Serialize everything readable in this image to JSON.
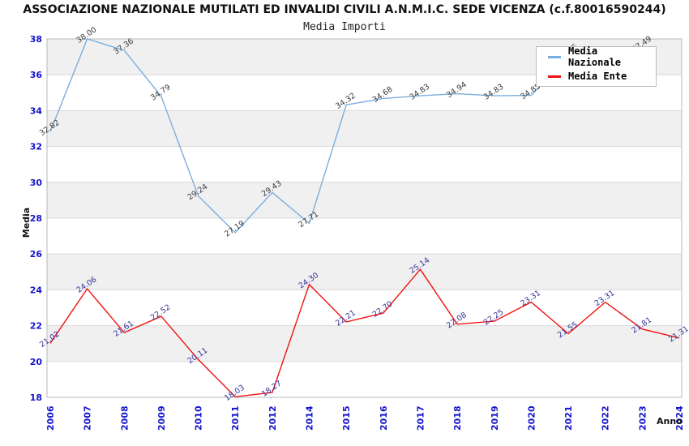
{
  "page": {
    "title": "ASSOCIAZIONE NAZIONALE MUTILATI ED INVALIDI CIVILI A.N.M.I.C. SEDE VICENZA (c.f.80016590244)",
    "subtitle": "Media Importi"
  },
  "axes": {
    "y_title": "Media",
    "x_title": "Anno"
  },
  "legend": {
    "items": [
      {
        "label": "Media Nazionale",
        "color": "#7aaede"
      },
      {
        "label": "Media Ente",
        "color": "#ee1111"
      }
    ]
  },
  "colors": {
    "axis_tick_text": "#1414cc",
    "band_gray": "#f0f0f0",
    "band_white": "#ffffff",
    "gridline": "#d9d9d9",
    "plot_border": "#b8b8b8",
    "nazionale_line": "#7aaede",
    "ente_line": "#ee1111",
    "nazionale_label_text": "#3a3a3a",
    "ente_label_text": "#333399"
  },
  "chart_data": {
    "type": "line",
    "title": "Media Importi",
    "xlabel": "Anno",
    "ylabel": "Media",
    "ylim": [
      18,
      38
    ],
    "ytick_step": 2,
    "grid": "horizontal-bands",
    "legend_position": "top-right",
    "categories": [
      "2006",
      "2007",
      "2008",
      "2009",
      "2010",
      "2011",
      "2012",
      "2014",
      "2015",
      "2016",
      "2017",
      "2018",
      "2019",
      "2020",
      "2021",
      "2022",
      "2023",
      "2024"
    ],
    "series": [
      {
        "name": "Media Nazionale",
        "color": "#7aaede",
        "label_color": "#3a3a3a",
        "points": [
          {
            "x": "2006",
            "y": 32.82,
            "label": "32.82"
          },
          {
            "x": "2007",
            "y": 38.0,
            "label": "38.00"
          },
          {
            "x": "2008",
            "y": 37.36,
            "label": "37.36"
          },
          {
            "x": "2009",
            "y": 34.79,
            "label": "34.79"
          },
          {
            "x": "2010",
            "y": 29.24,
            "label": "29.24"
          },
          {
            "x": "2011",
            "y": 27.19,
            "label": "27.19"
          },
          {
            "x": "2012",
            "y": 29.43,
            "label": "29.43"
          },
          {
            "x": "2014",
            "y": 27.71,
            "label": "27.71"
          },
          {
            "x": "2015",
            "y": 34.32,
            "label": "34.32"
          },
          {
            "x": "2016",
            "y": 34.68,
            "label": "34.68"
          },
          {
            "x": "2017",
            "y": 34.83,
            "label": "34.83"
          },
          {
            "x": "2018",
            "y": 34.94,
            "label": "34.94"
          },
          {
            "x": "2019",
            "y": 34.83,
            "label": "34.83"
          },
          {
            "x": "2020",
            "y": 34.85,
            "label": "34.85"
          },
          {
            "x": "2021",
            "y": 37.05,
            "label": "37.05"
          },
          {
            "x": "2022",
            "y": 37.2,
            "label": "",
            "estimated": true,
            "label_hidden_behind_legend": true
          },
          {
            "x": "2023",
            "y": 37.49,
            "label": "37.49"
          }
        ]
      },
      {
        "name": "Media Ente",
        "color": "#ee1111",
        "label_color": "#333399",
        "points": [
          {
            "x": "2006",
            "y": 21.02,
            "label": "21.02"
          },
          {
            "x": "2007",
            "y": 24.06,
            "label": "24.06"
          },
          {
            "x": "2008",
            "y": 21.61,
            "label": "21.61"
          },
          {
            "x": "2009",
            "y": 22.52,
            "label": "22.52"
          },
          {
            "x": "2010",
            "y": 20.11,
            "label": "20.11"
          },
          {
            "x": "2011",
            "y": 18.03,
            "label": "18.03"
          },
          {
            "x": "2012",
            "y": 18.27,
            "label": "18.27"
          },
          {
            "x": "2014",
            "y": 24.3,
            "label": "24.30"
          },
          {
            "x": "2015",
            "y": 22.21,
            "label": "22.21"
          },
          {
            "x": "2016",
            "y": 22.7,
            "label": "22.70"
          },
          {
            "x": "2017",
            "y": 25.14,
            "label": "25.14"
          },
          {
            "x": "2018",
            "y": 22.08,
            "label": "22.08"
          },
          {
            "x": "2019",
            "y": 22.25,
            "label": "22.25"
          },
          {
            "x": "2020",
            "y": 23.31,
            "label": "23.31"
          },
          {
            "x": "2021",
            "y": 21.55,
            "label": "21.55"
          },
          {
            "x": "2022",
            "y": 23.31,
            "label": "23.31"
          },
          {
            "x": "2023",
            "y": 21.81,
            "label": "21.81"
          },
          {
            "x": "2024",
            "y": 21.31,
            "label": "21.31"
          }
        ]
      }
    ]
  }
}
